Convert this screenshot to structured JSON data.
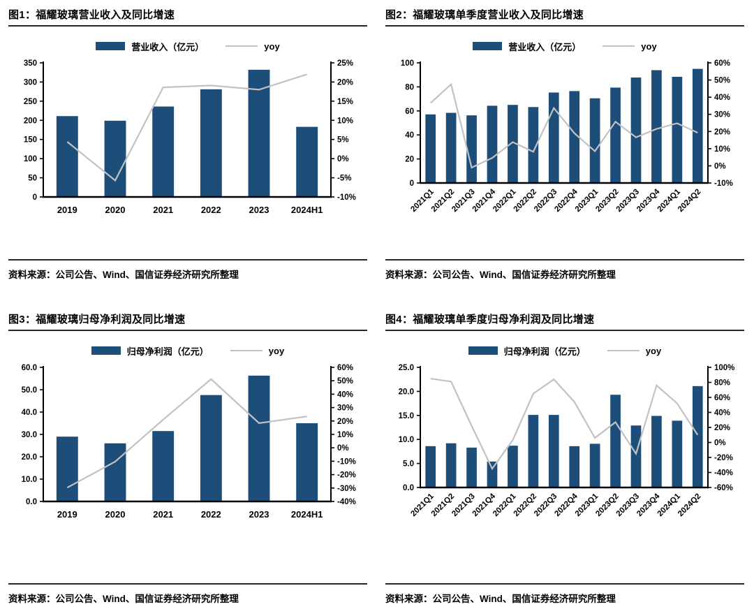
{
  "colors": {
    "bar": "#1D4E79",
    "line": "#C2C2C2",
    "axis": "#000000",
    "rule": "#262626",
    "background": "#FFFFFF"
  },
  "source_note": "资料来源：公司公告、Wind、国信证券经济研究所整理",
  "chart_data": [
    {
      "type": "bar",
      "title": "图1：福耀玻璃营业收入及同比增速",
      "legend_bar": "营业收入（亿元）",
      "legend_line": "yoy",
      "categories": [
        "2019",
        "2020",
        "2021",
        "2022",
        "2023",
        "2024H1"
      ],
      "series": [
        {
          "name": "营业收入（亿元）",
          "type": "bar",
          "axis": "left",
          "values": [
            211,
            199,
            236,
            281,
            332,
            183
          ]
        },
        {
          "name": "yoy",
          "type": "line",
          "axis": "right",
          "values": [
            4.4,
            -5.7,
            18.6,
            19.1,
            18.0,
            22.0
          ]
        }
      ],
      "left_axis": {
        "min": 0,
        "max": 350,
        "step": 50,
        "decimals": 0
      },
      "right_axis": {
        "min": -10,
        "max": 25,
        "step": 5,
        "suffix": "%"
      },
      "rotated_labels": false,
      "bar_width_ratio": 0.45,
      "grid": false,
      "legend_position": "top-center",
      "source": "资料来源：公司公告、Wind、国信证券经济研究所整理"
    },
    {
      "type": "bar",
      "title": "图2：福耀玻璃单季度营业收入及同比增速",
      "legend_bar": "营业收入（亿元）",
      "legend_line": "yoy",
      "categories": [
        "2021Q1",
        "2021Q2",
        "2021Q3",
        "2021Q4",
        "2022Q1",
        "2022Q2",
        "2022Q3",
        "2022Q4",
        "2023Q1",
        "2023Q2",
        "2023Q3",
        "2023Q4",
        "2024Q1",
        "2024Q2"
      ],
      "series": [
        {
          "name": "营业收入（亿元）",
          "type": "bar",
          "axis": "left",
          "values": [
            57.1,
            58.4,
            56.3,
            64.3,
            65.0,
            63.2,
            75.3,
            76.5,
            70.5,
            79.4,
            87.8,
            93.9,
            88.4,
            95.0
          ]
        },
        {
          "name": "yoy",
          "type": "line",
          "axis": "right",
          "values": [
            36.6,
            47.5,
            -1.0,
            4.6,
            13.8,
            8.2,
            33.7,
            19.0,
            8.5,
            25.7,
            16.6,
            21.5,
            24.8,
            19.3
          ]
        }
      ],
      "left_axis": {
        "min": 0,
        "max": 100,
        "step": 20,
        "decimals": 0
      },
      "right_axis": {
        "min": -10,
        "max": 60,
        "step": 10,
        "suffix": "%"
      },
      "rotated_labels": true,
      "bar_width_ratio": 0.5,
      "grid": false,
      "legend_position": "top-center",
      "source": "资料来源：公司公告、Wind、国信证券经济研究所整理"
    },
    {
      "type": "bar",
      "title": "图3：福耀玻璃归母净利润及同比增速",
      "legend_bar": "归母净利润（亿元）",
      "legend_line": "yoy",
      "categories": [
        "2019",
        "2020",
        "2021",
        "2022",
        "2023",
        "2024H1"
      ],
      "series": [
        {
          "name": "归母净利润（亿元）",
          "type": "bar",
          "axis": "left",
          "values": [
            29.0,
            26.0,
            31.5,
            47.6,
            56.3,
            35.0
          ]
        },
        {
          "name": "yoy",
          "type": "line",
          "axis": "right",
          "values": [
            -29.7,
            -10.3,
            21.0,
            51.2,
            18.4,
            23.4
          ]
        }
      ],
      "left_axis": {
        "min": 0,
        "max": 60,
        "step": 10,
        "decimals": 1
      },
      "right_axis": {
        "min": -40,
        "max": 60,
        "step": 10,
        "suffix": "%"
      },
      "rotated_labels": false,
      "bar_width_ratio": 0.45,
      "grid": false,
      "legend_position": "top-center",
      "source": "资料来源：公司公告、Wind、国信证券经济研究所整理"
    },
    {
      "type": "bar",
      "title": "图4：福耀玻璃单季度归母净利润及同比增速",
      "legend_bar": "归母净利润（亿元）",
      "legend_line": "yoy",
      "categories": [
        "2021Q1",
        "2021Q2",
        "2021Q3",
        "2021Q4",
        "2022Q1",
        "2022Q2",
        "2022Q3",
        "2022Q4",
        "2023Q1",
        "2023Q2",
        "2023Q3",
        "2023Q4",
        "2024Q1",
        "2024Q2"
      ],
      "series": [
        {
          "name": "归母净利润（亿元）",
          "type": "bar",
          "axis": "left",
          "values": [
            8.6,
            9.2,
            8.3,
            5.4,
            8.7,
            15.1,
            15.1,
            8.6,
            9.1,
            19.3,
            12.9,
            14.9,
            13.9,
            21.1
          ]
        },
        {
          "name": "yoy",
          "type": "line",
          "axis": "right",
          "values": [
            85,
            81,
            22,
            -35,
            3,
            65,
            84,
            54,
            6,
            27,
            -15,
            76,
            52,
            10
          ]
        }
      ],
      "left_axis": {
        "min": 0,
        "max": 25,
        "step": 5,
        "decimals": 1
      },
      "right_axis": {
        "min": -60,
        "max": 100,
        "step": 20,
        "suffix": "%"
      },
      "rotated_labels": true,
      "bar_width_ratio": 0.5,
      "grid": false,
      "legend_position": "top-center",
      "source": "资料来源：公司公告、Wind、国信证券经济研究所整理"
    }
  ]
}
